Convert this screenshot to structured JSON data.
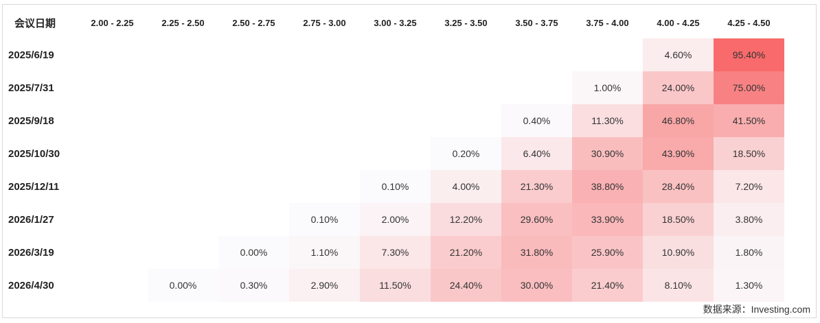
{
  "chart_data": {
    "type": "heatmap",
    "corner_label": "会议日期",
    "columns": [
      "2.00 - 2.25",
      "2.25 - 2.50",
      "2.50 - 2.75",
      "2.75 - 3.00",
      "3.00 - 3.25",
      "3.25 - 3.50",
      "3.50 - 3.75",
      "3.75 - 4.00",
      "4.00 - 4.25",
      "4.25 - 4.50"
    ],
    "rows": [
      {
        "label": "2025/6/19",
        "values": [
          null,
          null,
          null,
          null,
          null,
          null,
          null,
          null,
          4.6,
          95.4
        ]
      },
      {
        "label": "2025/7/31",
        "values": [
          null,
          null,
          null,
          null,
          null,
          null,
          null,
          1.0,
          24.0,
          75.0
        ]
      },
      {
        "label": "2025/9/18",
        "values": [
          null,
          null,
          null,
          null,
          null,
          null,
          0.4,
          11.3,
          46.8,
          41.5
        ]
      },
      {
        "label": "2025/10/30",
        "values": [
          null,
          null,
          null,
          null,
          null,
          0.2,
          6.4,
          30.9,
          43.9,
          18.5
        ]
      },
      {
        "label": "2025/12/11",
        "values": [
          null,
          null,
          null,
          null,
          0.1,
          4.0,
          21.3,
          38.8,
          28.4,
          7.2
        ]
      },
      {
        "label": "2026/1/27",
        "values": [
          null,
          null,
          null,
          0.1,
          2.0,
          12.2,
          29.6,
          33.9,
          18.5,
          3.8
        ]
      },
      {
        "label": "2026/3/19",
        "values": [
          null,
          null,
          0.0,
          1.1,
          7.3,
          21.2,
          31.8,
          25.9,
          10.9,
          1.8
        ]
      },
      {
        "label": "2026/4/30",
        "values": [
          null,
          0.0,
          0.3,
          2.9,
          11.5,
          24.4,
          30.0,
          21.4,
          8.1,
          1.3
        ]
      }
    ],
    "value_format": "percent_2dp",
    "color_low": "#fbfbfd",
    "color_high": "#f86a6b"
  },
  "source": "数据来源：Investing.com"
}
